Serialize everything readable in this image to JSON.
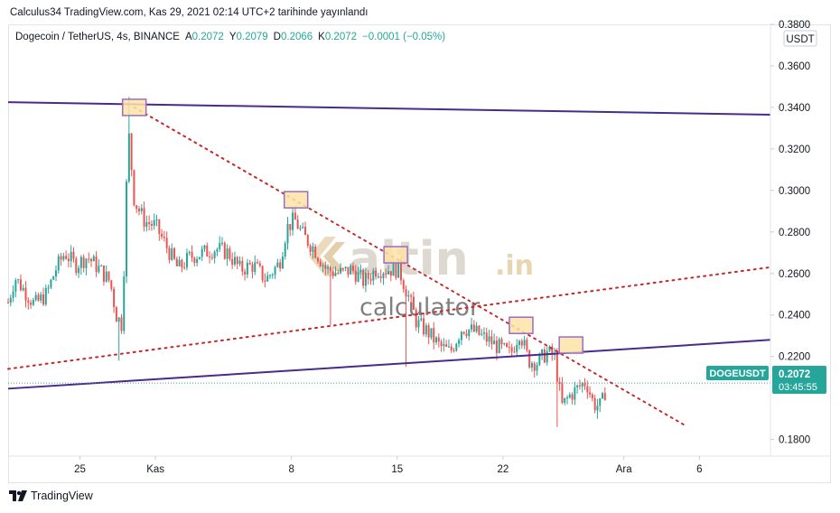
{
  "published": "Calculus34 TradingView.com, Kas 29, 2021 02:14 UTC+2 tarihinde yayınlandı",
  "legend": {
    "symbol": "Dogecoin / TetherUS, 4s, BINANCE",
    "open_label": "A",
    "open": "0.2072",
    "high_label": "Y",
    "high": "0.2079",
    "low_label": "D",
    "low": "0.2066",
    "close_label": "K",
    "close": "0.2072",
    "change": "−0.0001 (−0.05%)"
  },
  "currency": "USDT",
  "price_badge": {
    "ticker": "DOGEUSDT",
    "price": "0.2072",
    "countdown": "03:45:55"
  },
  "watermark": {
    "brand_a": "altin",
    "brand_b": ".in",
    "sub": "calculator"
  },
  "footer_brand": "TradingView",
  "colors": {
    "up": "#26a69a",
    "down": "#ef5350",
    "trendline": "#4a2a8c",
    "dotted": "#c62828",
    "marker_fill": "#fde3a7",
    "marker_border": "#9c6bc2",
    "badge": "#26a69a"
  },
  "chart_data": {
    "type": "candlestick",
    "symbol": "DOGEUSDT",
    "interval": "4s",
    "ylim": [
      0.172,
      0.38
    ],
    "y_ticks": [
      "0.1800",
      "0.2200",
      "0.2400",
      "0.2600",
      "0.2800",
      "0.3000",
      "0.3200",
      "0.3400",
      "0.3600",
      "0.3800"
    ],
    "x_ticks": [
      {
        "label": "25",
        "day": 0
      },
      {
        "label": "Kas",
        "day": 5
      },
      {
        "label": "8",
        "day": 14
      },
      {
        "label": "15",
        "day": 21
      },
      {
        "label": "22",
        "day": 28
      },
      {
        "label": "Ara",
        "day": 36
      },
      {
        "label": "6",
        "day": 41
      }
    ],
    "x_range_days": [
      -4.75,
      45.7
    ],
    "price_path": [
      {
        "day": -4.75,
        "price": 0.246
      },
      {
        "day": -4.3,
        "price": 0.258
      },
      {
        "day": -3.7,
        "price": 0.252
      },
      {
        "day": -3.0,
        "price": 0.245
      },
      {
        "day": -2.2,
        "price": 0.25
      },
      {
        "day": -1.6,
        "price": 0.262
      },
      {
        "day": -1.0,
        "price": 0.27
      },
      {
        "day": -0.3,
        "price": 0.264
      },
      {
        "day": 0.5,
        "price": 0.268
      },
      {
        "day": 1.3,
        "price": 0.262
      },
      {
        "day": 2.0,
        "price": 0.256
      },
      {
        "day": 2.4,
        "price": 0.24
      },
      {
        "day": 2.8,
        "price": 0.235
      },
      {
        "day": 3.2,
        "price": 0.33
      },
      {
        "day": 3.6,
        "price": 0.295
      },
      {
        "day": 4.3,
        "price": 0.285
      },
      {
        "day": 5.0,
        "price": 0.283
      },
      {
        "day": 5.8,
        "price": 0.272
      },
      {
        "day": 6.5,
        "price": 0.262
      },
      {
        "day": 7.3,
        "price": 0.268
      },
      {
        "day": 8.2,
        "price": 0.27
      },
      {
        "day": 9.0,
        "price": 0.272
      },
      {
        "day": 9.8,
        "price": 0.27
      },
      {
        "day": 10.6,
        "price": 0.262
      },
      {
        "day": 11.5,
        "price": 0.264
      },
      {
        "day": 12.3,
        "price": 0.257
      },
      {
        "day": 13.2,
        "price": 0.265
      },
      {
        "day": 13.7,
        "price": 0.282
      },
      {
        "day": 14.2,
        "price": 0.286
      },
      {
        "day": 14.8,
        "price": 0.278
      },
      {
        "day": 15.5,
        "price": 0.272
      },
      {
        "day": 16.3,
        "price": 0.262
      },
      {
        "day": 17.2,
        "price": 0.26
      },
      {
        "day": 18.0,
        "price": 0.262
      },
      {
        "day": 18.8,
        "price": 0.256
      },
      {
        "day": 19.6,
        "price": 0.262
      },
      {
        "day": 20.4,
        "price": 0.262
      },
      {
        "day": 21.1,
        "price": 0.262
      },
      {
        "day": 21.7,
        "price": 0.25
      },
      {
        "day": 22.3,
        "price": 0.236
      },
      {
        "day": 23.0,
        "price": 0.232
      },
      {
        "day": 23.8,
        "price": 0.225
      },
      {
        "day": 24.5,
        "price": 0.222
      },
      {
        "day": 25.3,
        "price": 0.234
      },
      {
        "day": 26.1,
        "price": 0.232
      },
      {
        "day": 27.0,
        "price": 0.228
      },
      {
        "day": 27.8,
        "price": 0.224
      },
      {
        "day": 28.5,
        "price": 0.221
      },
      {
        "day": 29.1,
        "price": 0.232
      },
      {
        "day": 29.7,
        "price": 0.218
      },
      {
        "day": 30.3,
        "price": 0.217
      },
      {
        "day": 30.9,
        "price": 0.222
      },
      {
        "day": 31.4,
        "price": 0.22
      },
      {
        "day": 31.9,
        "price": 0.196
      },
      {
        "day": 32.4,
        "price": 0.201
      },
      {
        "day": 33.0,
        "price": 0.205
      },
      {
        "day": 33.5,
        "price": 0.208
      },
      {
        "day": 34.0,
        "price": 0.197
      },
      {
        "day": 34.5,
        "price": 0.196
      },
      {
        "day": 34.9,
        "price": 0.2072
      }
    ],
    "spikes": [
      {
        "day": 2.5,
        "low": 0.218
      },
      {
        "day": 3.3,
        "high": 0.345
      },
      {
        "day": 16.5,
        "low": 0.235
      },
      {
        "day": 21.6,
        "low": 0.215
      },
      {
        "day": 31.6,
        "low": 0.186
      },
      {
        "day": 34.2,
        "low": 0.19
      }
    ],
    "trendlines": [
      {
        "style": "solid",
        "from": {
          "day": -4.75,
          "price": 0.3425
        },
        "to": {
          "day": 45.7,
          "price": 0.3365
        }
      },
      {
        "style": "solid",
        "from": {
          "day": -4.75,
          "price": 0.2045
        },
        "to": {
          "day": 45.7,
          "price": 0.228
        }
      },
      {
        "style": "dotted",
        "from": {
          "day": 3.6,
          "price": 0.34
        },
        "to": {
          "day": 40.0,
          "price": 0.187
        }
      },
      {
        "style": "dotted",
        "from": {
          "day": -4.75,
          "price": 0.214
        },
        "to": {
          "day": 45.7,
          "price": 0.263
        }
      }
    ],
    "markers": [
      {
        "day": 3.6,
        "price": 0.34
      },
      {
        "day": 14.3,
        "price": 0.2955
      },
      {
        "day": 20.9,
        "price": 0.269
      },
      {
        "day": 29.2,
        "price": 0.235
      },
      {
        "day": 32.5,
        "price": 0.2255
      }
    ],
    "last_price": 0.2072
  }
}
